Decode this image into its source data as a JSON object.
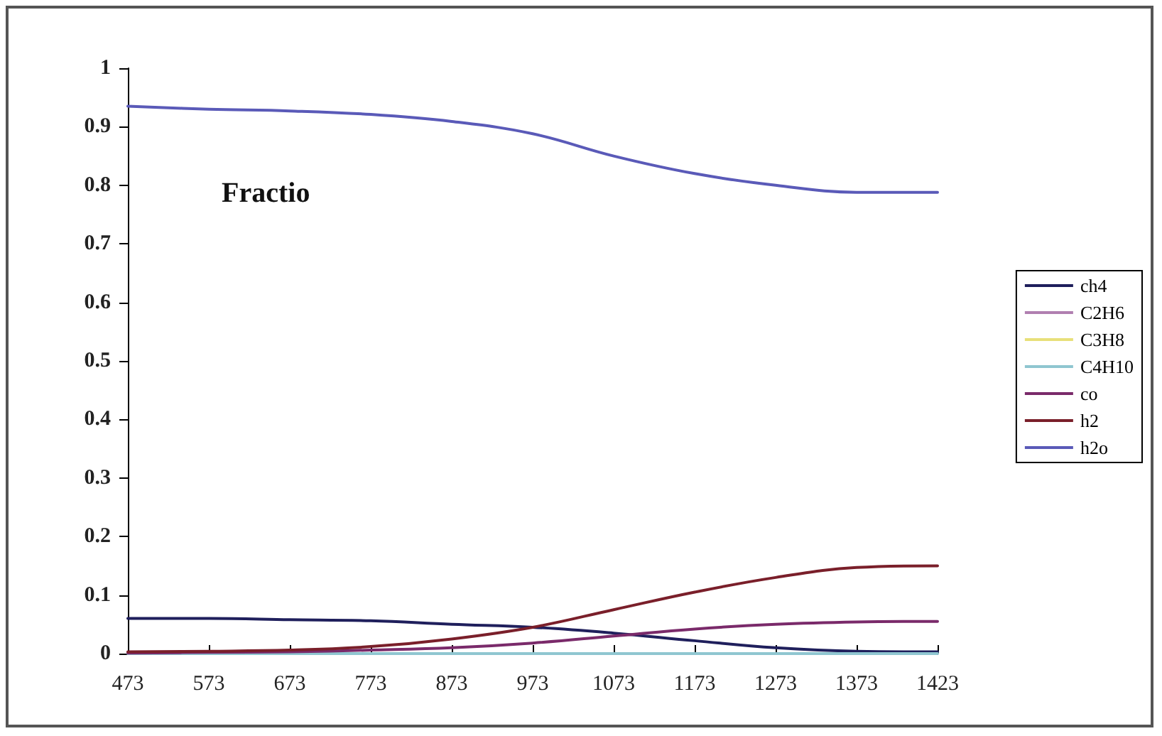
{
  "chart_data": {
    "type": "line",
    "categories": [
      "473",
      "573",
      "673",
      "773",
      "873",
      "973",
      "1073",
      "1173",
      "1273",
      "1373",
      "1423"
    ],
    "series": [
      {
        "name": "ch4",
        "color": "#1f1f5c",
        "values": [
          0.06,
          0.06,
          0.058,
          0.056,
          0.05,
          0.045,
          0.035,
          0.022,
          0.01,
          0.004,
          0.003
        ]
      },
      {
        "name": "C2H6",
        "color": "#b07fb0",
        "values": [
          null,
          null,
          null,
          null,
          null,
          null,
          null,
          null,
          null,
          null,
          null
        ]
      },
      {
        "name": "C3H8",
        "color": "#e8e07a",
        "values": [
          null,
          null,
          null,
          null,
          null,
          null,
          null,
          null,
          null,
          null,
          null
        ]
      },
      {
        "name": "C4H10",
        "color": "#8fc6d0",
        "values": [
          0,
          0,
          0,
          0,
          0,
          0,
          0,
          0,
          0,
          0,
          0
        ]
      },
      {
        "name": "co",
        "color": "#7a2a6a",
        "values": [
          0.001,
          0.002,
          0.003,
          0.006,
          0.01,
          0.018,
          0.03,
          0.042,
          0.05,
          0.054,
          0.055
        ]
      },
      {
        "name": "h2",
        "color": "#7a1f2a",
        "values": [
          0.003,
          0.004,
          0.006,
          0.012,
          0.025,
          0.045,
          0.075,
          0.105,
          0.13,
          0.147,
          0.15
        ]
      },
      {
        "name": "h2o",
        "color": "#5a5ab8",
        "values": [
          0.935,
          0.93,
          0.927,
          0.921,
          0.909,
          0.888,
          0.85,
          0.82,
          0.8,
          0.788,
          0.788
        ]
      }
    ],
    "ylim": [
      0,
      1
    ],
    "yticks": [
      0,
      0.1,
      0.2,
      0.3,
      0.4,
      0.5,
      0.6,
      0.7,
      0.8,
      0.9,
      1
    ],
    "annotations": [
      "Fractio"
    ],
    "legend": "right",
    "grid": false,
    "marker": "none",
    "line_style": "solid"
  }
}
